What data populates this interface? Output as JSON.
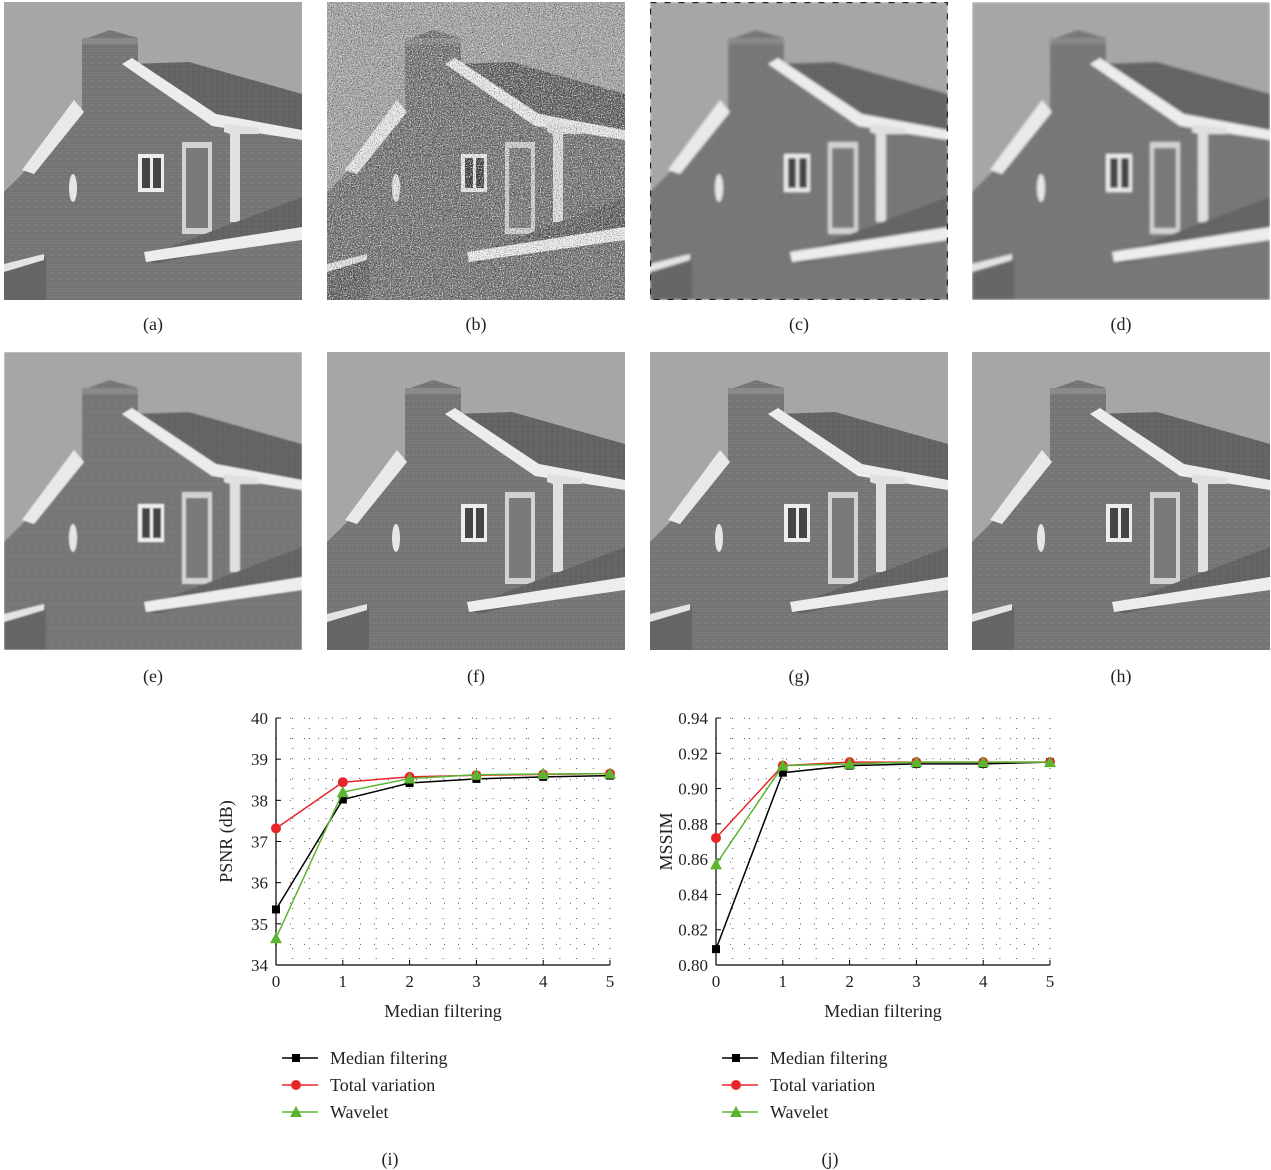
{
  "panels": [
    {
      "caption": "(a)",
      "variant": "original"
    },
    {
      "caption": "(b)",
      "variant": "noisy"
    },
    {
      "caption": "(c)",
      "variant": "smooth"
    },
    {
      "caption": "(d)",
      "variant": "smooth"
    },
    {
      "caption": "(e)",
      "variant": "blurred"
    },
    {
      "caption": "(f)",
      "variant": "restored"
    },
    {
      "caption": "(g)",
      "variant": "restored"
    },
    {
      "caption": "(h)",
      "variant": "restored"
    }
  ],
  "series_colors": {
    "Median filtering": "#000000",
    "Total variation": "#e8262a",
    "Wavelet": "#5cb531"
  },
  "chart_data": [
    {
      "type": "line",
      "caption": "(i)",
      "xlabel": "Median filtering",
      "ylabel": "PSNR (dB)",
      "xlim": [
        0,
        5
      ],
      "ylim": [
        34,
        40
      ],
      "xticks": [
        0,
        1,
        2,
        3,
        4,
        5
      ],
      "yticks": [
        34,
        35,
        36,
        37,
        38,
        39,
        40
      ],
      "ytick_labels": [
        "34",
        "35",
        "36",
        "37",
        "38",
        "39",
        "40"
      ],
      "grid": true,
      "legend_position": "below",
      "x": [
        0,
        1,
        2,
        3,
        4,
        5
      ],
      "series": [
        {
          "name": "Median filtering",
          "marker": "square",
          "values": [
            35.35,
            38.02,
            38.42,
            38.52,
            38.57,
            38.6
          ]
        },
        {
          "name": "Total variation",
          "marker": "circle",
          "values": [
            37.32,
            38.44,
            38.57,
            38.61,
            38.63,
            38.65
          ]
        },
        {
          "name": "Wavelet",
          "marker": "triangle",
          "values": [
            34.65,
            38.2,
            38.53,
            38.62,
            38.64,
            38.65
          ]
        }
      ]
    },
    {
      "type": "line",
      "caption": "(j)",
      "xlabel": "Median filtering",
      "ylabel": "MSSIM",
      "xlim": [
        0,
        5
      ],
      "ylim": [
        0.8,
        0.94
      ],
      "xticks": [
        0,
        1,
        2,
        3,
        4,
        5
      ],
      "yticks": [
        0.8,
        0.82,
        0.84,
        0.86,
        0.88,
        0.9,
        0.92,
        0.94
      ],
      "ytick_labels": [
        "0.80",
        "0.82",
        "0.84",
        "0.86",
        "0.88",
        "0.90",
        "0.92",
        "0.94"
      ],
      "grid": true,
      "legend_position": "below",
      "x": [
        0,
        1,
        2,
        3,
        4,
        5
      ],
      "series": [
        {
          "name": "Median filtering",
          "marker": "square",
          "values": [
            0.809,
            0.909,
            0.913,
            0.914,
            0.914,
            0.915
          ]
        },
        {
          "name": "Total variation",
          "marker": "circle",
          "values": [
            0.872,
            0.913,
            0.915,
            0.915,
            0.915,
            0.915
          ]
        },
        {
          "name": "Wavelet",
          "marker": "triangle",
          "values": [
            0.857,
            0.913,
            0.914,
            0.915,
            0.915,
            0.915
          ]
        }
      ]
    }
  ]
}
